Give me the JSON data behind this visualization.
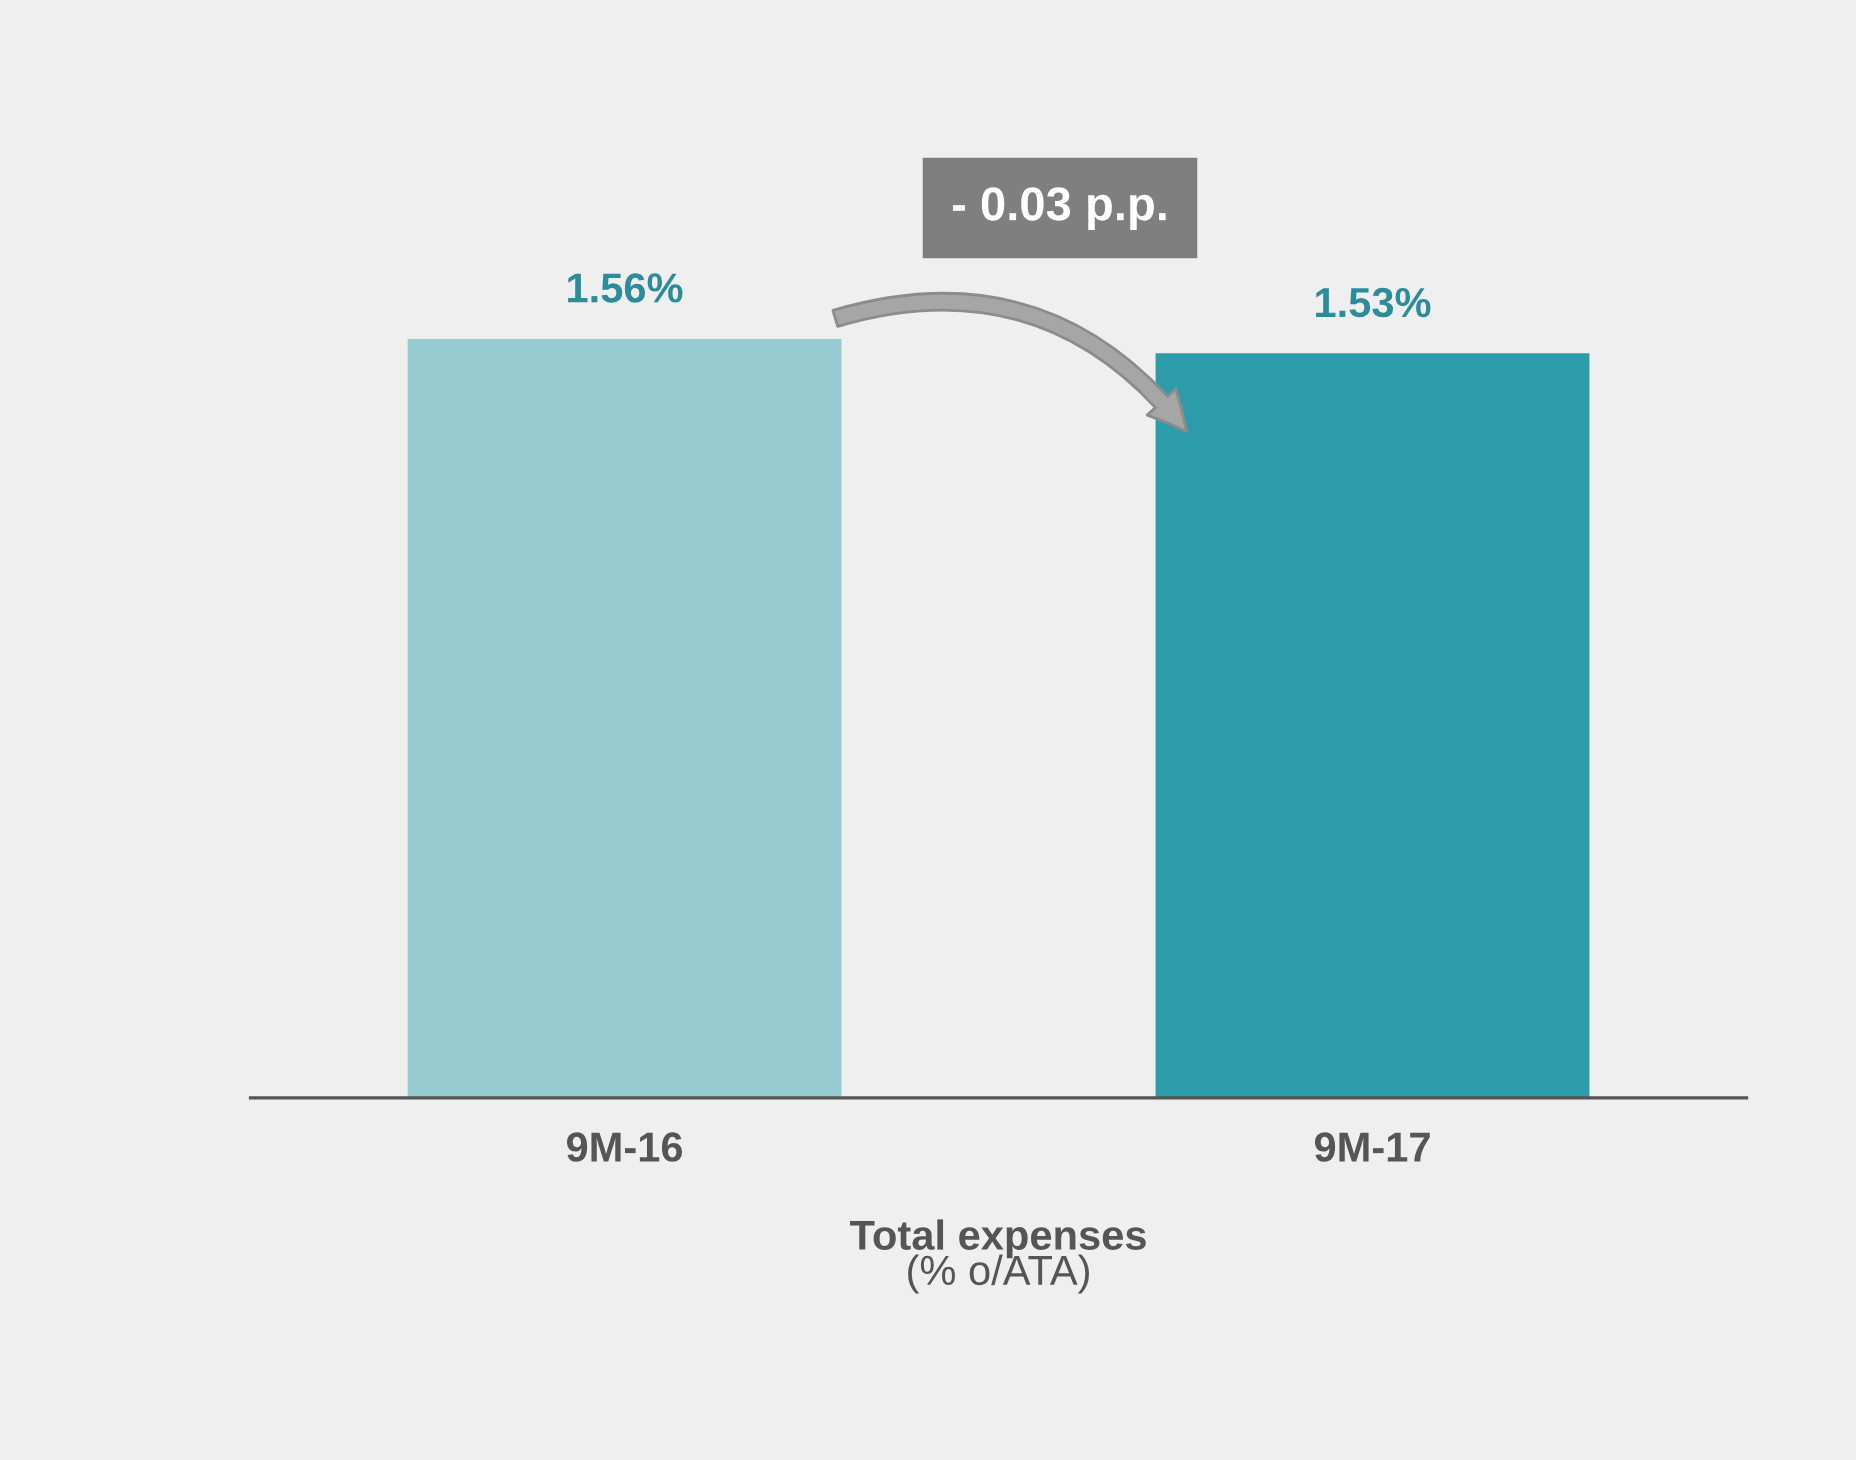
{
  "chart_data": {
    "type": "bar",
    "categories": [
      "9M-16",
      "9M-17"
    ],
    "values": [
      1.56,
      1.53
    ],
    "colors": [
      "#97cbd2",
      "#2c9cab"
    ],
    "value_labels": [
      "1.56%",
      "1.53%"
    ],
    "xlabel": "Total expenses",
    "annotations": [
      "(% o/ATA)",
      "- 0.03 p.p."
    ],
    "grid": false,
    "legend": false
  }
}
